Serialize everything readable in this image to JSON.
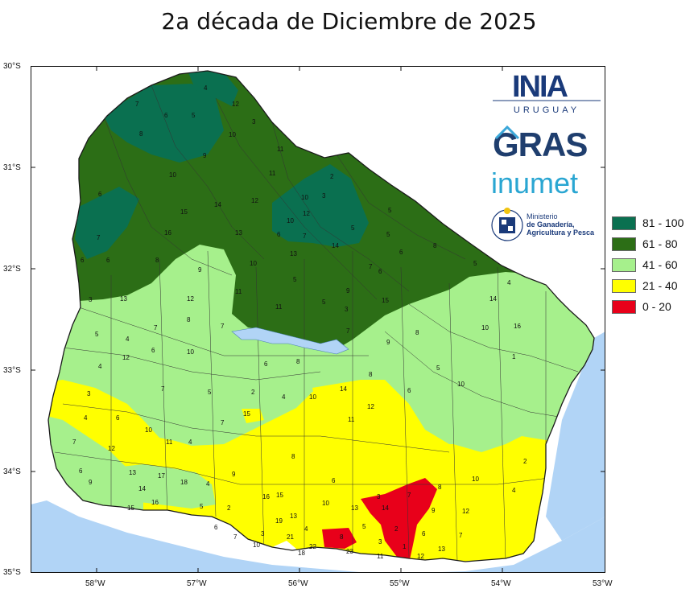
{
  "title": "2a década de Diciembre de 2025",
  "axes": {
    "lat_labels": [
      "30°S",
      "31°S",
      "32°S",
      "33°S",
      "34°S",
      "35°S"
    ],
    "lon_labels": [
      "58°W",
      "57°W",
      "56°W",
      "55°W",
      "54°W",
      "53°W"
    ]
  },
  "legend": {
    "items": [
      {
        "label": "81 - 100",
        "color": "#0a7050"
      },
      {
        "label": "61 - 80",
        "color": "#2c6e16"
      },
      {
        "label": "41 - 60",
        "color": "#a6f08c"
      },
      {
        "label": "21 - 40",
        "color": "#ffff00"
      },
      {
        "label": "0 - 20",
        "color": "#e8001a"
      }
    ]
  },
  "logos": {
    "inia_text": "INIA",
    "inia_sub": "URUGUAY",
    "gras": "GRAS",
    "inumet": "inumet",
    "ministerio": [
      "Ministerio",
      "de Ganadería,",
      "Agricultura y Pesca"
    ]
  },
  "colors": {
    "water": "#b1d4f6",
    "outside": "#ffffff",
    "border": "#1a1a1a"
  },
  "zone_labels": [
    "4",
    "12",
    "5",
    "6",
    "7",
    "8",
    "3",
    "10",
    "9",
    "11",
    "2",
    "13",
    "14",
    "15",
    "16",
    "17",
    "18",
    "19",
    "21",
    "22",
    "23",
    "1"
  ]
}
